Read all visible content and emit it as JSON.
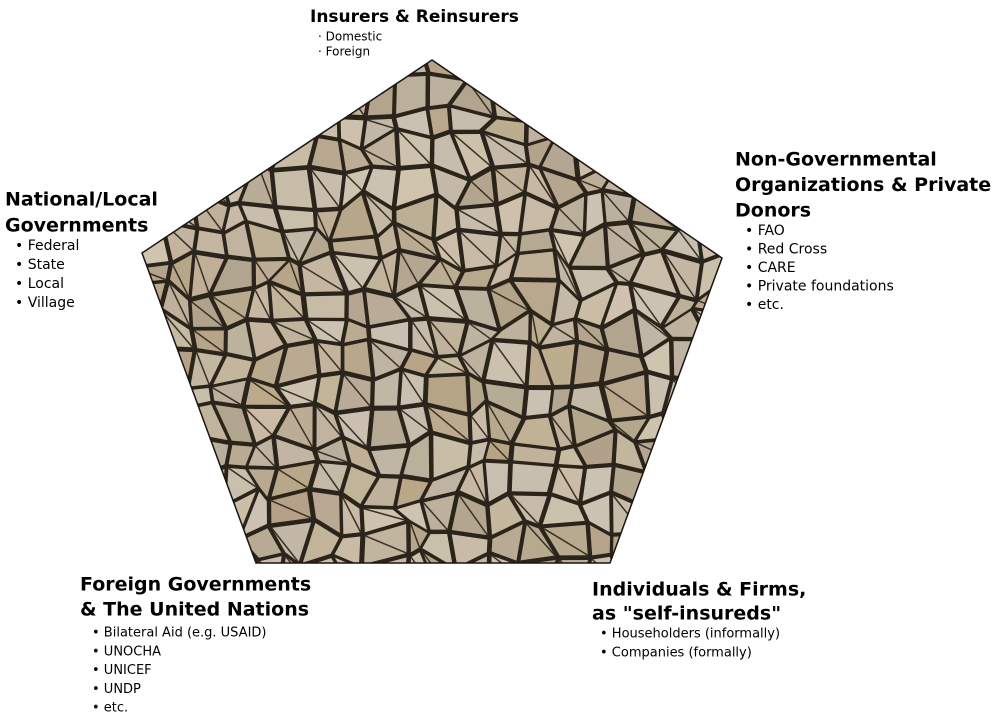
{
  "groups": [
    {
      "title": [
        "Insurers & Reinsurers"
      ],
      "items": [
        "· Domestic",
        "· Foreign"
      ]
    },
    {
      "title": [
        "National/Local",
        "Governments"
      ],
      "items": [
        "• Federal",
        "• State",
        "• Local",
        "• Village"
      ]
    },
    {
      "title": [
        "Non-Governmental",
        "Organizations & Private",
        "Donors"
      ],
      "items": [
        "• FAO",
        "• Red Cross",
        "• CARE",
        "• Private foundations",
        "• etc."
      ]
    },
    {
      "title": [
        "Foreign Governments",
        "& The United Nations"
      ],
      "items": [
        "• Bilateral Aid (e.g. USAID)",
        "• UNOCHA",
        "• UNICEF",
        "• UNDP",
        "• etc."
      ]
    },
    {
      "title": [
        "Individuals & Firms,",
        "as \"self-insureds\""
      ],
      "items": [
        "• Householders (informally)",
        "• Companies (formally)"
      ]
    }
  ]
}
